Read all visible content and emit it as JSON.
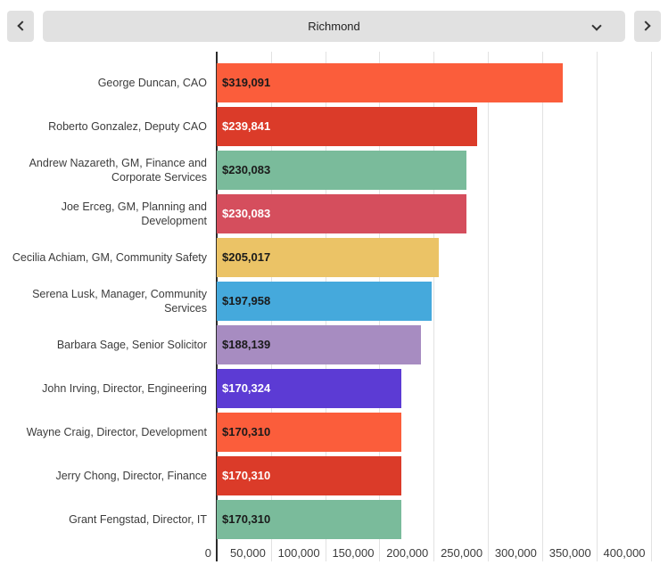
{
  "header": {
    "city": "Richmond",
    "prev_icon": "chevron-left",
    "next_icon": "chevron-right",
    "dropdown_icon": "chevron-down"
  },
  "chart_data": {
    "type": "bar",
    "orientation": "horizontal",
    "title": "",
    "categories": [
      "George Duncan, CAO",
      "Roberto Gonzalez, Deputy CAO",
      "Andrew Nazareth, GM, Finance and Corporate Services",
      "Joe Erceg, GM, Planning and Development",
      "Cecilia Achiam, GM, Community Safety",
      "Serena Lusk, Manager, Community Services",
      "Barbara Sage, Senior Solicitor",
      "John Irving, Director, Engineering",
      "Wayne Craig, Director, Development",
      "Jerry Chong, Director, Finance",
      "Grant Fengstad, Director, IT"
    ],
    "values": [
      319091,
      239841,
      230083,
      230083,
      205017,
      197958,
      188139,
      170324,
      170310,
      170310,
      170310
    ],
    "value_labels": [
      "$319,091",
      "$239,841",
      "$230,083",
      "$230,083",
      "$205,017",
      "$197,958",
      "$188,139",
      "$170,324",
      "$170,310",
      "$170,310",
      "$170,310"
    ],
    "bar_colors": [
      "#fb5d3b",
      "#db3b29",
      "#7abb9b",
      "#d54e5d",
      "#ebc366",
      "#45a9dc",
      "#a78cc1",
      "#5c3bd4",
      "#fb5d3b",
      "#db3b29",
      "#7abb9b"
    ],
    "value_label_colors": [
      "#1a1a1a",
      "#ffffff",
      "#1a1a1a",
      "#ffffff",
      "#1a1a1a",
      "#1a1a1a",
      "#1a1a1a",
      "#ffffff",
      "#1a1a1a",
      "#ffffff",
      "#1a1a1a"
    ],
    "xlabel": "",
    "ylabel": "",
    "xlim": [
      0,
      416000
    ],
    "xticks": [
      0,
      50000,
      100000,
      150000,
      200000,
      250000,
      300000,
      350000,
      400000
    ],
    "xtick_labels": [
      "0",
      "50,000",
      "100,000",
      "150,000",
      "200,000",
      "250,000",
      "300,000",
      "350,000",
      "400,000"
    ],
    "grid": true,
    "legend": false
  },
  "colors": {
    "axis_line": "#2b2b2b",
    "gridline": "#e2e2e2",
    "tick_text": "#3c3c3c",
    "category_text": "#3c3c3c",
    "control_bg": "#e1e1e1",
    "control_icon": "#333333",
    "background": "#ffffff"
  }
}
